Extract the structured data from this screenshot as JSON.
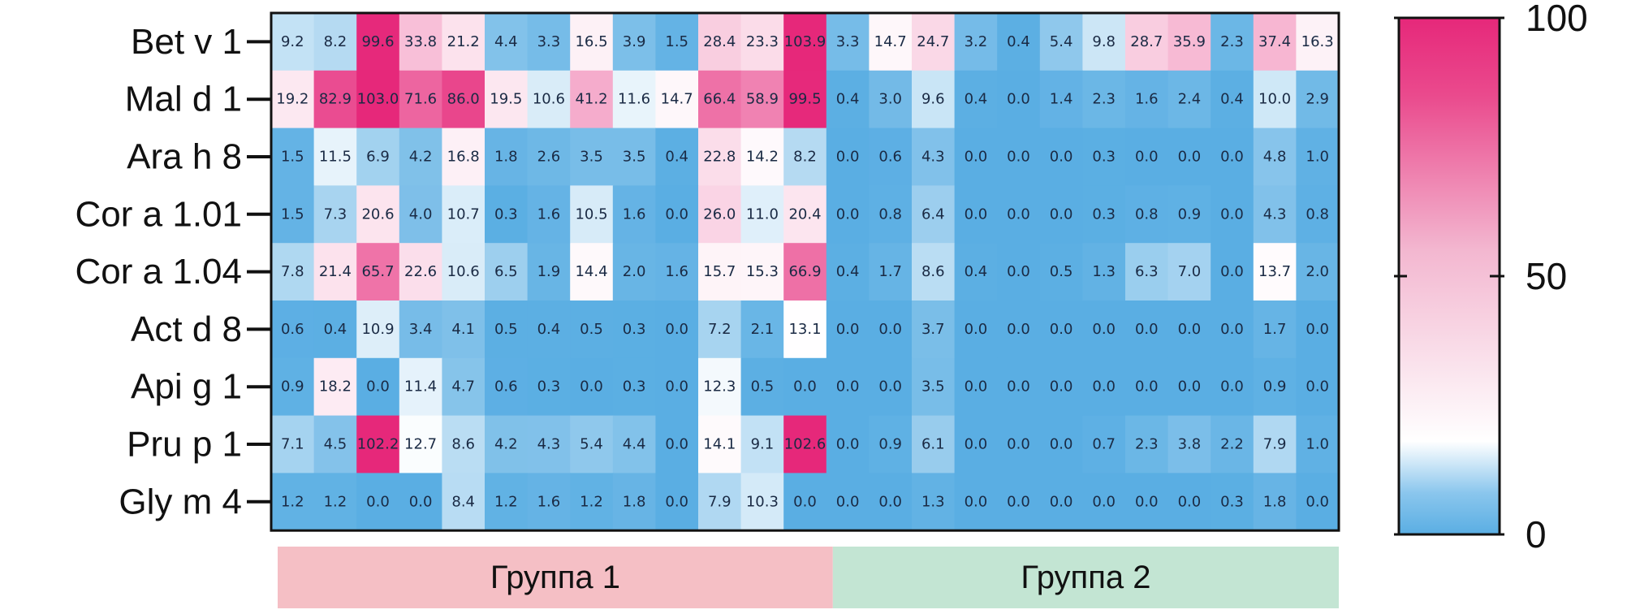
{
  "chart_data": {
    "type": "heatmap",
    "rows": [
      "Bet v 1",
      "Mal d 1",
      "Ara h 8",
      "Cor a 1.01",
      "Cor a 1.04",
      "Act d 8",
      "Api g 1",
      "Pru p 1",
      "Gly m 4"
    ],
    "values": [
      [
        9.2,
        8.2,
        99.6,
        33.8,
        21.2,
        4.4,
        3.3,
        16.5,
        3.9,
        1.5,
        28.4,
        23.3,
        103.9,
        3.3,
        14.7,
        24.7,
        3.2,
        0.4,
        5.4,
        9.8,
        28.7,
        35.9,
        2.3,
        37.4,
        16.3
      ],
      [
        19.2,
        82.9,
        103.0,
        71.6,
        86.0,
        19.5,
        10.6,
        41.2,
        11.6,
        14.7,
        66.4,
        58.9,
        99.5,
        0.4,
        3.0,
        9.6,
        0.4,
        0.0,
        1.4,
        2.3,
        1.6,
        2.4,
        0.4,
        10.0,
        2.9
      ],
      [
        1.5,
        11.5,
        6.9,
        4.2,
        16.8,
        1.8,
        2.6,
        3.5,
        3.5,
        0.4,
        22.8,
        14.2,
        8.2,
        0.0,
        0.6,
        4.3,
        0.0,
        0.0,
        0.0,
        0.3,
        0.0,
        0.0,
        0.0,
        4.8,
        1.0
      ],
      [
        1.5,
        7.3,
        20.6,
        4.0,
        10.7,
        0.3,
        1.6,
        10.5,
        1.6,
        0.0,
        26.0,
        11.0,
        20.4,
        0.0,
        0.8,
        6.4,
        0.0,
        0.0,
        0.0,
        0.3,
        0.8,
        0.9,
        0.0,
        4.3,
        0.8
      ],
      [
        7.8,
        21.4,
        65.7,
        22.6,
        10.6,
        6.5,
        1.9,
        14.4,
        2.0,
        1.6,
        15.7,
        15.3,
        66.9,
        0.4,
        1.7,
        8.6,
        0.4,
        0.0,
        0.5,
        1.3,
        6.3,
        7.0,
        0.0,
        13.7,
        2.0
      ],
      [
        0.6,
        0.4,
        10.9,
        3.4,
        4.1,
        0.5,
        0.4,
        0.5,
        0.3,
        0.0,
        7.2,
        2.1,
        13.1,
        0.0,
        0.0,
        3.7,
        0.0,
        0.0,
        0.0,
        0.0,
        0.0,
        0.0,
        0.0,
        1.7,
        0.0
      ],
      [
        0.9,
        18.2,
        0.0,
        11.4,
        4.7,
        0.6,
        0.3,
        0.0,
        0.3,
        0.0,
        12.3,
        0.5,
        0.0,
        0.0,
        0.0,
        3.5,
        0.0,
        0.0,
        0.0,
        0.0,
        0.0,
        0.0,
        0.0,
        0.9,
        0.0
      ],
      [
        7.1,
        4.5,
        102.2,
        12.7,
        8.6,
        4.2,
        4.3,
        5.4,
        4.4,
        0.0,
        14.1,
        9.1,
        102.6,
        0.0,
        0.9,
        6.1,
        0.0,
        0.0,
        0.0,
        0.7,
        2.3,
        3.8,
        2.2,
        7.9,
        1.0
      ],
      [
        1.2,
        1.2,
        0.0,
        0.0,
        8.4,
        1.2,
        1.6,
        1.2,
        1.8,
        0.0,
        7.9,
        10.3,
        0.0,
        0.0,
        0.0,
        1.3,
        0.0,
        0.0,
        0.0,
        0.0,
        0.0,
        0.0,
        0.3,
        1.8,
        0.0
      ]
    ],
    "colorbar": {
      "min": 0,
      "max": 100,
      "ticks": [
        0,
        50,
        100
      ],
      "colors": {
        "low": "#5aaee3",
        "mid": "#ffffff",
        "high": "#e6287a"
      },
      "placement": "right"
    },
    "groups": [
      {
        "label": "Группа 1",
        "columns": 13,
        "color": "#f5bfc5"
      },
      {
        "label": "Группа 2",
        "columns": 12,
        "color": "#c3e5d3"
      }
    ]
  }
}
